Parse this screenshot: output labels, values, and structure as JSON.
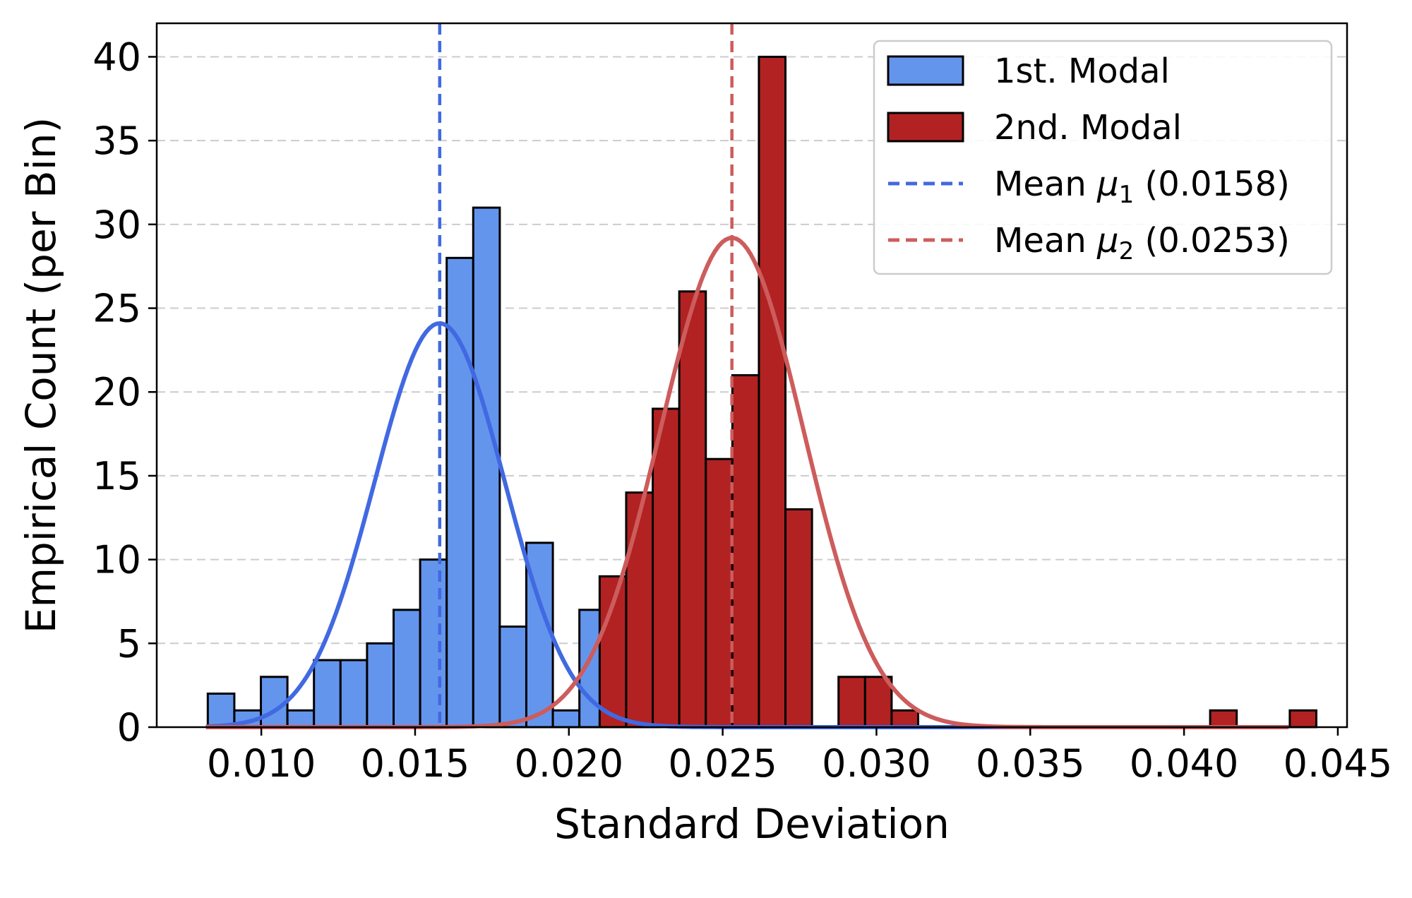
{
  "chart_data": {
    "type": "bar",
    "title": "",
    "xlabel": "Standard Deviation",
    "ylabel": "Empirical Count (per Bin)",
    "xlim": [
      0.0066,
      0.0453
    ],
    "ylim": [
      0,
      42
    ],
    "xticks": [
      0.01,
      0.015,
      0.02,
      0.025,
      0.03,
      0.035,
      0.04,
      0.045
    ],
    "xtick_labels": [
      "0.010",
      "0.015",
      "0.020",
      "0.025",
      "0.030",
      "0.035",
      "0.040",
      "0.045"
    ],
    "yticks": [
      0,
      5,
      10,
      15,
      20,
      25,
      30,
      35,
      40
    ],
    "ytick_labels": [
      "0",
      "5",
      "10",
      "15",
      "20",
      "25",
      "30",
      "35",
      "40"
    ],
    "grid": {
      "y": true,
      "x": false,
      "style": "dashed"
    },
    "legend_position": "top-right",
    "series": [
      {
        "name": "1st. Modal",
        "kind": "histogram",
        "color": "#6495ED",
        "edge_color": "#000000",
        "bin_start": 0.00826,
        "bin_width": 0.000863,
        "counts": [
          2,
          1,
          3,
          1,
          4,
          4,
          5,
          7,
          10,
          28,
          31,
          6,
          11,
          1,
          7
        ]
      },
      {
        "name": "2nd. Modal",
        "kind": "histogram",
        "color": "#B22222",
        "edge_color": "#000000",
        "bin_start": 0.021,
        "bin_width": 0.000863,
        "counts": [
          9,
          14,
          19,
          26,
          16,
          21,
          40,
          13,
          0,
          3,
          3,
          1,
          0,
          0,
          0,
          0,
          0,
          0,
          0,
          0,
          0,
          0,
          0,
          1,
          0,
          0,
          1
        ]
      },
      {
        "name": "1st. Modal fit",
        "kind": "gaussian",
        "color": "#4169E1",
        "mean": 0.0158,
        "sd": 0.00212,
        "peak": 24.1,
        "x_range": [
          0.0082,
          0.0434
        ]
      },
      {
        "name": "2nd. Modal fit",
        "kind": "gaussian",
        "color": "#CD5C5C",
        "mean": 0.0253,
        "sd": 0.00233,
        "peak": 29.2,
        "x_range": [
          0.0082,
          0.0434
        ]
      },
      {
        "name": "Mean μ1 (0.0158)",
        "kind": "vline",
        "color": "#4169E1",
        "x": 0.0158
      },
      {
        "name": "Mean μ2 (0.0253)",
        "kind": "vline",
        "color": "#CD5C5C",
        "x": 0.0253
      }
    ],
    "legend": [
      {
        "label": "1st. Modal",
        "symbol": "patch",
        "color": "#6495ED"
      },
      {
        "label": "2nd. Modal",
        "symbol": "patch",
        "color": "#B22222"
      },
      {
        "label": "Mean ",
        "math": "μ",
        "sub": "1",
        "tail": " (0.0158)",
        "symbol": "dashed-line",
        "color": "#4169E1"
      },
      {
        "label": "Mean ",
        "math": "μ",
        "sub": "2",
        "tail": " (0.0253)",
        "symbol": "dashed-line",
        "color": "#CD5C5C"
      }
    ]
  }
}
